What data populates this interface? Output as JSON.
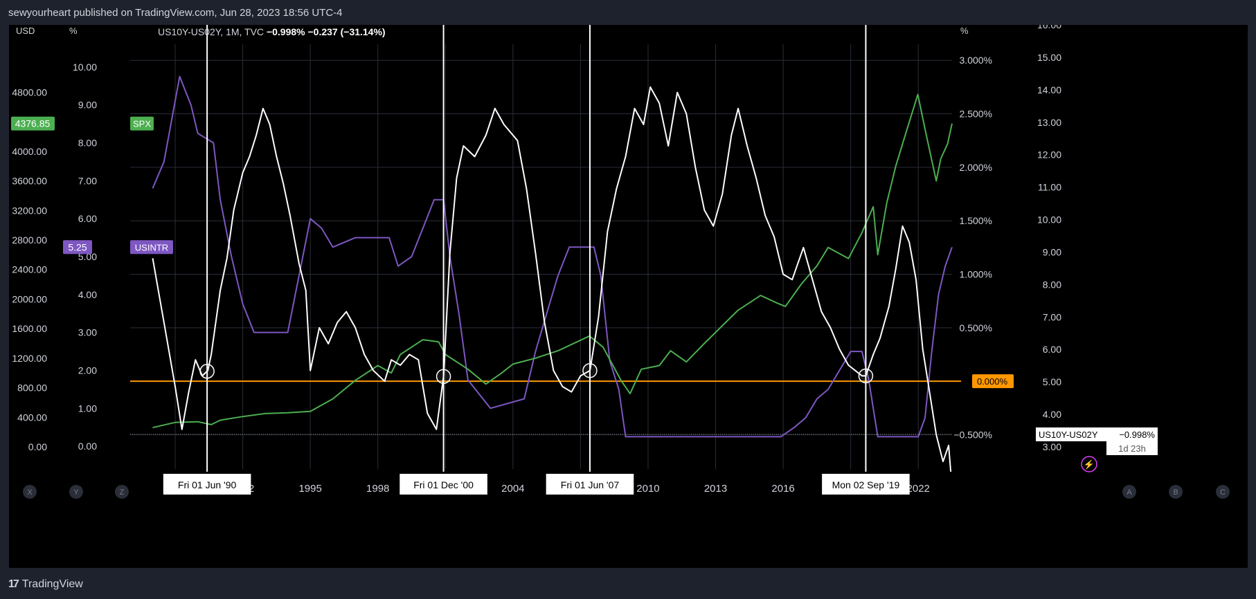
{
  "header": {
    "publish_line": "sewyourheart published on TradingView.com, Jun 28, 2023 18:56 UTC-4"
  },
  "footer": {
    "brand": "TradingView"
  },
  "legend": {
    "symbol": "US10Y-US02Y, 1M, TVC",
    "last": "−0.998%",
    "change": "−0.237 (−31.14%)"
  },
  "colors": {
    "background": "#000000",
    "frame": "#1e222d",
    "spread": "#ffffff",
    "spx": "#4caf50",
    "usintr": "#7e57c2",
    "zero_line": "#ff9800",
    "grid": "#2a2e39"
  },
  "axes": {
    "usd_title": "USD",
    "pct_title_left": "%",
    "pct_title_right": "%",
    "usd_ticks": [
      "4800.00",
      "4000.00",
      "3600.00",
      "3200.00",
      "2800.00",
      "2400.00",
      "2000.00",
      "1600.00",
      "1200.00",
      "800.00",
      "400.00",
      "0.00"
    ],
    "pct_left_ticks": [
      "10.00",
      "9.00",
      "8.00",
      "7.00",
      "6.00",
      "5.00",
      "4.00",
      "3.00",
      "2.00",
      "1.00",
      "0.00"
    ],
    "spread_ticks": [
      "3.000%",
      "2.500%",
      "2.000%",
      "1.500%",
      "1.000%",
      "0.500%",
      "0.000%",
      "−0.500%"
    ],
    "far_right_ticks": [
      "16.00",
      "15.00",
      "14.00",
      "13.00",
      "12.00",
      "11.00",
      "10.00",
      "9.00",
      "8.00",
      "7.00",
      "6.00",
      "5.00",
      "4.00",
      "3.00"
    ],
    "x_ticks": [
      "19",
      "1992",
      "1995",
      "1998",
      "2004",
      "2010",
      "2013",
      "2016",
      "2022"
    ]
  },
  "badges": {
    "spx_value": "4376.85",
    "spx_name": "SPX",
    "usintr_value": "5.25",
    "usintr_name": "USINTR",
    "zero_label": "0.000%",
    "spread_name": "US10Y-US02Y",
    "spread_value": "−0.998%",
    "countdown": "1d 23h"
  },
  "markers": [
    {
      "label": "Fri 01 Jun '90",
      "date": "1990-06-01"
    },
    {
      "label": "Fri 01 Dec '00",
      "date": "2000-12-01"
    },
    {
      "label": "Fri 01 Jun '07",
      "date": "2007-06-01"
    },
    {
      "label": "Mon 02 Sep '19",
      "date": "2019-09-02"
    }
  ],
  "toolbar": {
    "left_buttons": [
      "X",
      "Y",
      "Z"
    ],
    "right_buttons": [
      "A",
      "B",
      "C"
    ]
  },
  "chart_data": {
    "type": "line",
    "xlim": [
      1987.0,
      2023.5
    ],
    "series": [
      {
        "name": "US10Y-US02Y",
        "unit": "%",
        "ylim": [
          -0.82,
          3.15
        ],
        "points": [
          [
            1988,
            1.15
          ],
          [
            1988.5,
            0.55
          ],
          [
            1989,
            -0.05
          ],
          [
            1989.3,
            -0.45
          ],
          [
            1989.6,
            -0.1
          ],
          [
            1989.9,
            0.2
          ],
          [
            1990.2,
            0.05
          ],
          [
            1990.45,
            0.1
          ],
          [
            1990.6,
            0.25
          ],
          [
            1990.8,
            0.55
          ],
          [
            1991.0,
            0.85
          ],
          [
            1991.3,
            1.15
          ],
          [
            1991.6,
            1.6
          ],
          [
            1992.0,
            1.95
          ],
          [
            1992.3,
            2.1
          ],
          [
            1992.6,
            2.3
          ],
          [
            1992.9,
            2.55
          ],
          [
            1993.2,
            2.4
          ],
          [
            1993.5,
            2.1
          ],
          [
            1993.8,
            1.85
          ],
          [
            1994.1,
            1.55
          ],
          [
            1994.5,
            1.1
          ],
          [
            1994.8,
            0.85
          ],
          [
            1995.0,
            0.1
          ],
          [
            1995.4,
            0.5
          ],
          [
            1995.8,
            0.35
          ],
          [
            1996.2,
            0.55
          ],
          [
            1996.6,
            0.65
          ],
          [
            1997.0,
            0.5
          ],
          [
            1997.4,
            0.25
          ],
          [
            1997.8,
            0.1
          ],
          [
            1998.3,
            0.0
          ],
          [
            1998.6,
            0.2
          ],
          [
            1999.0,
            0.15
          ],
          [
            1999.4,
            0.25
          ],
          [
            1999.8,
            0.2
          ],
          [
            2000.2,
            -0.3
          ],
          [
            2000.6,
            -0.45
          ],
          [
            2000.92,
            0.05
          ],
          [
            2001.2,
            1.2
          ],
          [
            2001.5,
            1.9
          ],
          [
            2001.8,
            2.2
          ],
          [
            2002.3,
            2.1
          ],
          [
            2002.8,
            2.3
          ],
          [
            2003.2,
            2.55
          ],
          [
            2003.6,
            2.4
          ],
          [
            2004.2,
            2.25
          ],
          [
            2004.6,
            1.8
          ],
          [
            2005.0,
            1.2
          ],
          [
            2005.4,
            0.55
          ],
          [
            2005.8,
            0.1
          ],
          [
            2006.2,
            -0.05
          ],
          [
            2006.6,
            -0.1
          ],
          [
            2007.0,
            0.05
          ],
          [
            2007.42,
            0.1
          ],
          [
            2007.8,
            0.6
          ],
          [
            2008.2,
            1.4
          ],
          [
            2008.6,
            1.8
          ],
          [
            2009.0,
            2.1
          ],
          [
            2009.4,
            2.55
          ],
          [
            2009.8,
            2.4
          ],
          [
            2010.1,
            2.75
          ],
          [
            2010.5,
            2.6
          ],
          [
            2010.9,
            2.2
          ],
          [
            2011.3,
            2.7
          ],
          [
            2011.7,
            2.5
          ],
          [
            2012.1,
            2.0
          ],
          [
            2012.5,
            1.6
          ],
          [
            2012.9,
            1.45
          ],
          [
            2013.3,
            1.75
          ],
          [
            2013.7,
            2.3
          ],
          [
            2014.0,
            2.55
          ],
          [
            2014.4,
            2.2
          ],
          [
            2014.8,
            1.9
          ],
          [
            2015.2,
            1.55
          ],
          [
            2015.6,
            1.35
          ],
          [
            2016.0,
            1.0
          ],
          [
            2016.4,
            0.95
          ],
          [
            2016.9,
            1.25
          ],
          [
            2017.3,
            0.95
          ],
          [
            2017.7,
            0.65
          ],
          [
            2018.1,
            0.5
          ],
          [
            2018.5,
            0.3
          ],
          [
            2018.9,
            0.15
          ],
          [
            2019.2,
            0.1
          ],
          [
            2019.5,
            0.05
          ],
          [
            2019.67,
            0.05
          ],
          [
            2020.0,
            0.25
          ],
          [
            2020.3,
            0.4
          ],
          [
            2020.7,
            0.7
          ],
          [
            2021.0,
            1.05
          ],
          [
            2021.3,
            1.45
          ],
          [
            2021.6,
            1.3
          ],
          [
            2021.9,
            0.95
          ],
          [
            2022.2,
            0.3
          ],
          [
            2022.5,
            -0.1
          ],
          [
            2022.8,
            -0.5
          ],
          [
            2023.1,
            -0.75
          ],
          [
            2023.35,
            -0.6
          ],
          [
            2023.5,
            -0.998
          ]
        ]
      },
      {
        "name": "SPX",
        "unit": "USD",
        "ylim": [
          -300,
          5450
        ],
        "points": [
          [
            1988,
            260
          ],
          [
            1989,
            330
          ],
          [
            1990,
            340
          ],
          [
            1990.6,
            300
          ],
          [
            1991,
            360
          ],
          [
            1992,
            410
          ],
          [
            1993,
            450
          ],
          [
            1994,
            460
          ],
          [
            1995,
            480
          ],
          [
            1996,
            650
          ],
          [
            1997,
            900
          ],
          [
            1998,
            1100
          ],
          [
            1998.6,
            1000
          ],
          [
            1999,
            1250
          ],
          [
            2000,
            1450
          ],
          [
            2000.7,
            1420
          ],
          [
            2001,
            1250
          ],
          [
            2002,
            1050
          ],
          [
            2002.8,
            850
          ],
          [
            2003.5,
            1000
          ],
          [
            2004,
            1120
          ],
          [
            2005,
            1200
          ],
          [
            2006,
            1300
          ],
          [
            2007.4,
            1500
          ],
          [
            2008,
            1350
          ],
          [
            2008.8,
            900
          ],
          [
            2009.2,
            720
          ],
          [
            2009.7,
            1050
          ],
          [
            2010.5,
            1100
          ],
          [
            2011,
            1300
          ],
          [
            2011.7,
            1150
          ],
          [
            2012.5,
            1400
          ],
          [
            2013,
            1550
          ],
          [
            2014,
            1850
          ],
          [
            2015,
            2050
          ],
          [
            2015.7,
            1950
          ],
          [
            2016.1,
            1900
          ],
          [
            2016.8,
            2200
          ],
          [
            2017.5,
            2450
          ],
          [
            2018,
            2700
          ],
          [
            2018.9,
            2550
          ],
          [
            2019.5,
            2900
          ],
          [
            2020,
            3250
          ],
          [
            2020.2,
            2600
          ],
          [
            2020.6,
            3300
          ],
          [
            2021,
            3800
          ],
          [
            2021.5,
            4300
          ],
          [
            2021.98,
            4770
          ],
          [
            2022.3,
            4300
          ],
          [
            2022.8,
            3600
          ],
          [
            2023.0,
            3900
          ],
          [
            2023.3,
            4100
          ],
          [
            2023.5,
            4376.85
          ]
        ]
      },
      {
        "name": "USINTR",
        "unit": "%",
        "ylim": [
          -0.6,
          10.6
        ],
        "points": [
          [
            1988,
            6.8
          ],
          [
            1988.5,
            7.5
          ],
          [
            1989.2,
            9.75
          ],
          [
            1989.7,
            9.0
          ],
          [
            1990.0,
            8.25
          ],
          [
            1990.7,
            8.0
          ],
          [
            1991.0,
            6.5
          ],
          [
            1991.5,
            5.0
          ],
          [
            1992.0,
            3.75
          ],
          [
            1992.5,
            3.0
          ],
          [
            1993,
            3.0
          ],
          [
            1994.0,
            3.0
          ],
          [
            1994.5,
            4.5
          ],
          [
            1995.0,
            6.0
          ],
          [
            1995.5,
            5.75
          ],
          [
            1996.0,
            5.25
          ],
          [
            1997.0,
            5.5
          ],
          [
            1998.5,
            5.5
          ],
          [
            1998.9,
            4.75
          ],
          [
            1999.5,
            5.0
          ],
          [
            2000.0,
            5.75
          ],
          [
            2000.5,
            6.5
          ],
          [
            2000.92,
            6.5
          ],
          [
            2001.2,
            5.0
          ],
          [
            2001.6,
            3.5
          ],
          [
            2002.0,
            1.75
          ],
          [
            2003.0,
            1.0
          ],
          [
            2004.5,
            1.25
          ],
          [
            2005.0,
            2.5
          ],
          [
            2005.5,
            3.5
          ],
          [
            2006.0,
            4.5
          ],
          [
            2006.5,
            5.25
          ],
          [
            2007.6,
            5.25
          ],
          [
            2007.9,
            4.5
          ],
          [
            2008.3,
            2.25
          ],
          [
            2008.7,
            1.5
          ],
          [
            2009.0,
            0.25
          ],
          [
            2015.9,
            0.25
          ],
          [
            2016.5,
            0.5
          ],
          [
            2017.0,
            0.75
          ],
          [
            2017.5,
            1.25
          ],
          [
            2018.0,
            1.5
          ],
          [
            2018.5,
            2.0
          ],
          [
            2019.0,
            2.5
          ],
          [
            2019.5,
            2.5
          ],
          [
            2019.8,
            1.75
          ],
          [
            2020.2,
            0.25
          ],
          [
            2022.0,
            0.25
          ],
          [
            2022.3,
            0.75
          ],
          [
            2022.6,
            2.5
          ],
          [
            2022.9,
            4.0
          ],
          [
            2023.2,
            4.75
          ],
          [
            2023.5,
            5.25
          ]
        ]
      }
    ]
  }
}
